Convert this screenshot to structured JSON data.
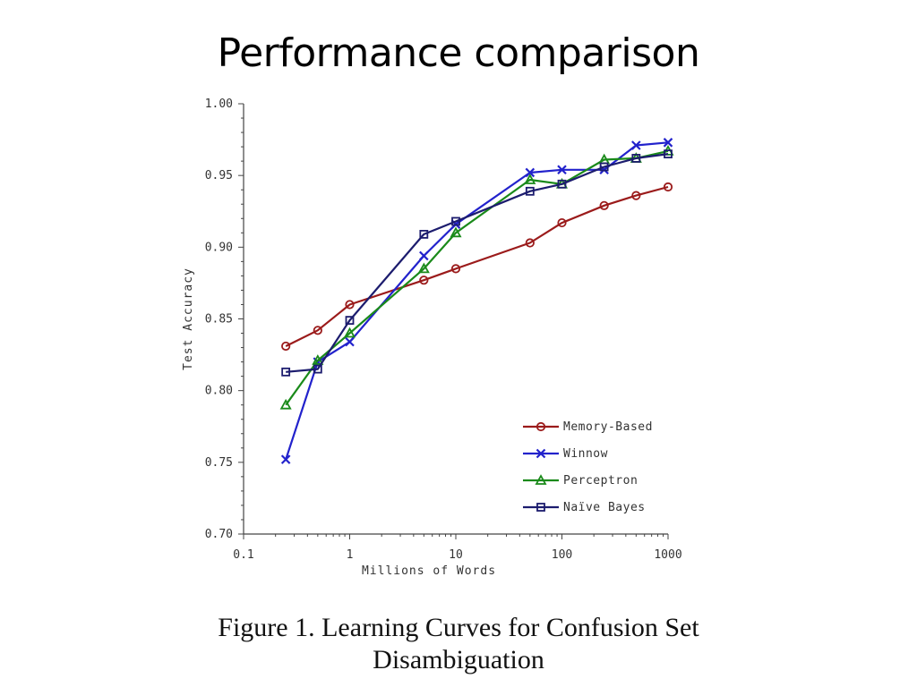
{
  "slide": {
    "title": "Performance comparison"
  },
  "caption": {
    "line1": "Figure 1. Learning Curves for Confusion Set",
    "line2": "Disambiguation"
  },
  "chart_data": {
    "type": "line",
    "xlabel": "Millions of Words",
    "ylabel": "Test Accuracy",
    "xscale": "log",
    "xlim": [
      0.1,
      1000
    ],
    "ylim": [
      0.7,
      1.0
    ],
    "xticks": [
      0.1,
      1,
      10,
      100,
      1000
    ],
    "xtick_labels": [
      "0.1",
      "1",
      "10",
      "100",
      "1000"
    ],
    "yticks": [
      0.7,
      0.75,
      0.8,
      0.85,
      0.9,
      0.95,
      1.0
    ],
    "ytick_labels": [
      "0.70",
      "0.75",
      "0.80",
      "0.85",
      "0.90",
      "0.95",
      "1.00"
    ],
    "legend_position": "bottom-right",
    "grid": false,
    "series": [
      {
        "name": "Memory-Based",
        "color": "#9b1b1b",
        "marker": "circle",
        "x": [
          0.25,
          0.5,
          1,
          5,
          10,
          50,
          100,
          250,
          500,
          1000
        ],
        "y": [
          0.831,
          0.842,
          0.86,
          0.877,
          0.885,
          0.903,
          0.917,
          0.929,
          0.936,
          0.942
        ]
      },
      {
        "name": "Winnow",
        "color": "#2222cc",
        "marker": "x",
        "x": [
          0.25,
          0.5,
          1,
          5,
          10,
          50,
          100,
          250,
          500,
          1000
        ],
        "y": [
          0.752,
          0.82,
          0.834,
          0.894,
          0.916,
          0.952,
          0.954,
          0.954,
          0.971,
          0.973
        ]
      },
      {
        "name": "Perceptron",
        "color": "#1a8a1a",
        "marker": "triangle",
        "x": [
          0.25,
          0.5,
          1,
          5,
          10,
          50,
          100,
          250,
          500,
          1000
        ],
        "y": [
          0.79,
          0.821,
          0.84,
          0.885,
          0.91,
          0.947,
          0.944,
          0.961,
          0.962,
          0.967
        ]
      },
      {
        "name": "Naïve Bayes",
        "color": "#1c1c6e",
        "marker": "square",
        "x": [
          0.25,
          0.5,
          1,
          5,
          10,
          50,
          100,
          250,
          500,
          1000
        ],
        "y": [
          0.813,
          0.815,
          0.849,
          0.909,
          0.918,
          0.939,
          0.944,
          0.956,
          0.962,
          0.965
        ]
      }
    ]
  }
}
